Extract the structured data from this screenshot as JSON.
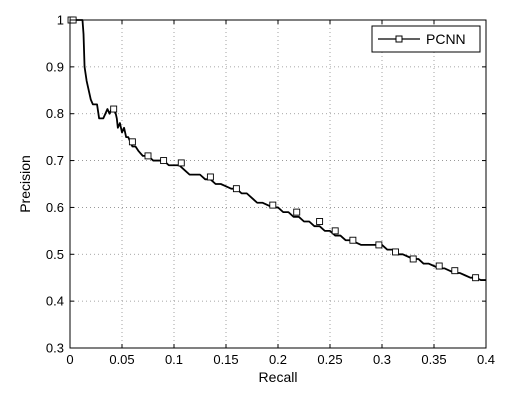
{
  "chart_data": {
    "type": "line",
    "title": "",
    "xlabel": "Recall",
    "ylabel": "Precision",
    "xlim": [
      0,
      0.4
    ],
    "ylim": [
      0.3,
      1.0
    ],
    "xticks": [
      0,
      0.05,
      0.1,
      0.15,
      0.2,
      0.25,
      0.3,
      0.35,
      0.4
    ],
    "yticks": [
      0.3,
      0.4,
      0.5,
      0.6,
      0.7,
      0.8,
      0.9,
      1.0
    ],
    "xtick_labels": [
      "0",
      "0.05",
      "0.1",
      "0.15",
      "0.2",
      "0.25",
      "0.3",
      "0.35",
      "0.4"
    ],
    "ytick_labels": [
      "0.3",
      "0.4",
      "0.5",
      "0.6",
      "0.7",
      "0.8",
      "0.9",
      "1"
    ],
    "grid": true,
    "grid_style": "dotted",
    "legend_position": "top-right",
    "series": [
      {
        "name": "PCNN",
        "color": "#000000",
        "marker": "square",
        "x": [
          0.0,
          0.001,
          0.003,
          0.005,
          0.008,
          0.01,
          0.011,
          0.012,
          0.013,
          0.014,
          0.016,
          0.018,
          0.02,
          0.022,
          0.024,
          0.026,
          0.028,
          0.03,
          0.032,
          0.034,
          0.036,
          0.038,
          0.04,
          0.042,
          0.044,
          0.045,
          0.046,
          0.048,
          0.05,
          0.052,
          0.054,
          0.056,
          0.058,
          0.06,
          0.063,
          0.066,
          0.07,
          0.075,
          0.08,
          0.085,
          0.09,
          0.095,
          0.1,
          0.105,
          0.11,
          0.115,
          0.12,
          0.125,
          0.13,
          0.135,
          0.14,
          0.145,
          0.15,
          0.155,
          0.16,
          0.165,
          0.17,
          0.175,
          0.18,
          0.185,
          0.19,
          0.195,
          0.2,
          0.205,
          0.21,
          0.215,
          0.22,
          0.225,
          0.23,
          0.235,
          0.24,
          0.245,
          0.25,
          0.255,
          0.26,
          0.265,
          0.27,
          0.275,
          0.28,
          0.285,
          0.29,
          0.295,
          0.3,
          0.305,
          0.31,
          0.315,
          0.32,
          0.325,
          0.33,
          0.335,
          0.34,
          0.345,
          0.35,
          0.355,
          0.36,
          0.365,
          0.37,
          0.375,
          0.38,
          0.385,
          0.39,
          0.395,
          0.4
        ],
        "y": [
          1.0,
          1.0,
          1.0,
          1.0,
          1.0,
          1.0,
          1.0,
          1.0,
          0.97,
          0.9,
          0.87,
          0.85,
          0.83,
          0.82,
          0.82,
          0.82,
          0.79,
          0.79,
          0.79,
          0.8,
          0.81,
          0.8,
          0.81,
          0.81,
          0.8,
          0.79,
          0.77,
          0.78,
          0.76,
          0.77,
          0.75,
          0.75,
          0.74,
          0.73,
          0.73,
          0.72,
          0.71,
          0.71,
          0.7,
          0.7,
          0.7,
          0.69,
          0.69,
          0.69,
          0.68,
          0.67,
          0.67,
          0.67,
          0.66,
          0.66,
          0.65,
          0.65,
          0.645,
          0.64,
          0.64,
          0.63,
          0.63,
          0.62,
          0.61,
          0.61,
          0.605,
          0.6,
          0.6,
          0.59,
          0.59,
          0.58,
          0.58,
          0.57,
          0.57,
          0.56,
          0.56,
          0.55,
          0.55,
          0.54,
          0.54,
          0.53,
          0.53,
          0.525,
          0.52,
          0.52,
          0.52,
          0.52,
          0.52,
          0.51,
          0.51,
          0.5,
          0.5,
          0.495,
          0.49,
          0.49,
          0.48,
          0.48,
          0.475,
          0.47,
          0.47,
          0.465,
          0.46,
          0.46,
          0.455,
          0.45,
          0.45,
          0.445,
          0.445
        ],
        "marker_x": [
          0.001,
          0.003,
          0.042,
          0.06,
          0.075,
          0.09,
          0.107,
          0.135,
          0.16,
          0.195,
          0.218,
          0.24,
          0.255,
          0.272,
          0.297,
          0.313,
          0.33,
          0.355,
          0.37,
          0.39
        ],
        "marker_y": [
          1.0,
          1.0,
          0.81,
          0.74,
          0.71,
          0.7,
          0.695,
          0.665,
          0.64,
          0.605,
          0.59,
          0.57,
          0.55,
          0.53,
          0.52,
          0.505,
          0.49,
          0.475,
          0.465,
          0.45
        ]
      }
    ]
  }
}
